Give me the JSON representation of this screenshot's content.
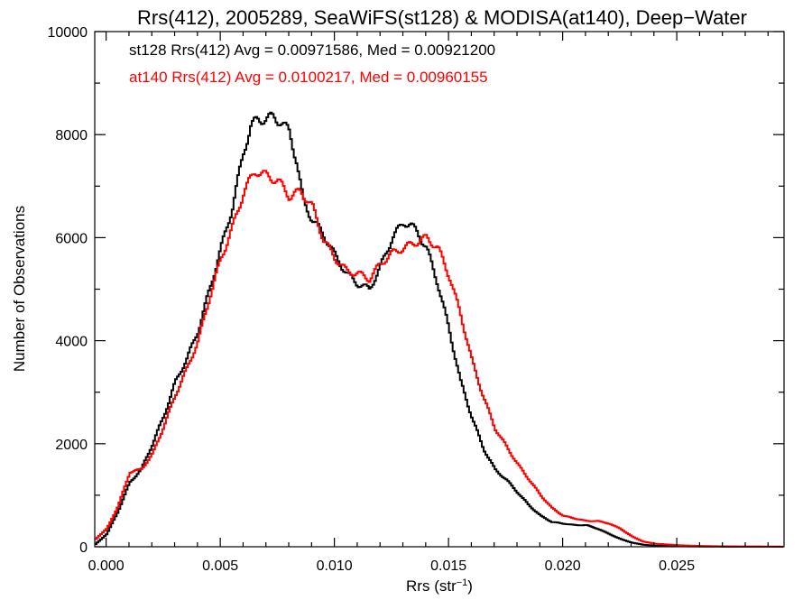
{
  "chart_data": {
    "type": "line",
    "title": "Rrs(412), 2005289, SeaWiFS(st128) & MODISA(at140), Deep−Water",
    "xlabel_main": "Rrs (str",
    "xlabel_sup": "−1",
    "xlabel_end": ")",
    "ylabel": "Number of Observations",
    "xlim": [
      -0.0005,
      0.0297
    ],
    "ylim": [
      0,
      10000
    ],
    "xticks": [
      0.0,
      0.005,
      0.01,
      0.015,
      0.02,
      0.025
    ],
    "xtick_labels": [
      "0.000",
      "0.005",
      "0.010",
      "0.015",
      "0.020",
      "0.025"
    ],
    "yticks": [
      0,
      2000,
      4000,
      6000,
      8000,
      10000
    ],
    "ytick_labels": [
      "0",
      "2000",
      "4000",
      "6000",
      "8000",
      "10000"
    ],
    "legend_position": "top-left",
    "series": [
      {
        "name": "st128 Rrs(412) Avg = 0.00971586, Med = 0.00921200",
        "color": "#000000",
        "x": [
          -0.0005,
          0.0,
          0.0005,
          0.001,
          0.0015,
          0.002,
          0.0025,
          0.003,
          0.0035,
          0.004,
          0.0045,
          0.005,
          0.0055,
          0.006,
          0.0063,
          0.0066,
          0.007,
          0.0073,
          0.0076,
          0.008,
          0.0083,
          0.0086,
          0.009,
          0.0095,
          0.01,
          0.0105,
          0.011,
          0.0115,
          0.012,
          0.0125,
          0.013,
          0.0133,
          0.0136,
          0.014,
          0.0145,
          0.015,
          0.0155,
          0.016,
          0.0165,
          0.017,
          0.0175,
          0.018,
          0.0185,
          0.019,
          0.0195,
          0.02,
          0.0205,
          0.021,
          0.0215,
          0.022,
          0.0225,
          0.023,
          0.0235,
          0.024,
          0.025,
          0.026,
          0.027,
          0.028,
          0.0297
        ],
        "y": [
          50,
          250,
          700,
          1250,
          1500,
          2000,
          2550,
          3200,
          3650,
          4200,
          5000,
          5800,
          6600,
          7700,
          8150,
          8300,
          8300,
          8350,
          8250,
          8050,
          7500,
          6700,
          6350,
          6050,
          5650,
          5300,
          5100,
          5000,
          5450,
          6000,
          6300,
          6250,
          6100,
          5800,
          5100,
          4200,
          3200,
          2500,
          1900,
          1500,
          1300,
          1050,
          800,
          600,
          480,
          450,
          420,
          420,
          350,
          250,
          150,
          80,
          40,
          20,
          10,
          5,
          3,
          2,
          1
        ]
      },
      {
        "name": "at140 Rrs(412) Avg = 0.0100217, Med = 0.00960155",
        "color": "#ff0000",
        "x": [
          -0.0005,
          0.0,
          0.0005,
          0.001,
          0.0015,
          0.002,
          0.0025,
          0.003,
          0.0035,
          0.004,
          0.0045,
          0.005,
          0.0055,
          0.006,
          0.0065,
          0.007,
          0.0075,
          0.008,
          0.0085,
          0.009,
          0.0095,
          0.01,
          0.0105,
          0.011,
          0.0115,
          0.012,
          0.0125,
          0.013,
          0.0135,
          0.014,
          0.0145,
          0.015,
          0.0155,
          0.016,
          0.0165,
          0.017,
          0.0175,
          0.018,
          0.0185,
          0.019,
          0.0195,
          0.02,
          0.0205,
          0.021,
          0.0215,
          0.022,
          0.0225,
          0.023,
          0.0235,
          0.024,
          0.025,
          0.026,
          0.027,
          0.028,
          0.0297
        ],
        "y": [
          150,
          350,
          800,
          1450,
          1500,
          1800,
          2350,
          2950,
          3450,
          4000,
          4850,
          5600,
          6200,
          6900,
          7300,
          7200,
          7100,
          6800,
          6900,
          6600,
          5950,
          5600,
          5350,
          5300,
          5200,
          5500,
          5700,
          5800,
          5900,
          6000,
          5800,
          5250,
          4500,
          3600,
          2900,
          2300,
          1950,
          1600,
          1300,
          1000,
          750,
          600,
          550,
          500,
          500,
          450,
          350,
          200,
          100,
          60,
          30,
          15,
          8,
          4,
          2
        ]
      }
    ]
  }
}
